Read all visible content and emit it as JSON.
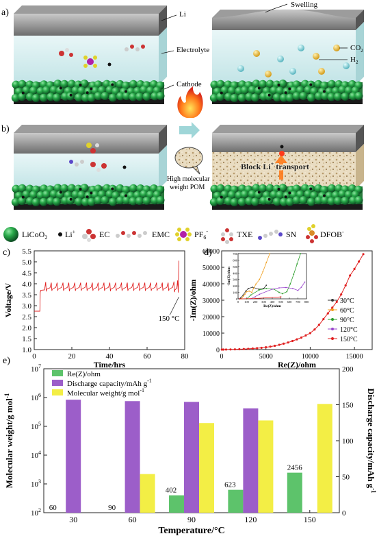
{
  "schematic": {
    "panel_a": "a)",
    "panel_b": "b)",
    "label_li": "Li",
    "label_electrolyte": "Electrolyte",
    "label_cathode": "Cathode",
    "label_swelling": "Swelling",
    "label_co2": "CO",
    "label_co2_sub": "2",
    "label_h2": "H",
    "label_h2_sub": "2",
    "label_block": "Block Li",
    "label_block_sup": "+",
    "label_block_tail": " transport",
    "label_pom_line1": "High molecular",
    "label_pom_line2": "weight POM"
  },
  "legend_row": {
    "licoo2": "LiCoO",
    "licoo2_sub": "2",
    "li": "Li",
    "li_sup": "+",
    "ec": "EC",
    "emc": "EMC",
    "pf6": "PF",
    "pf6_sub": "6",
    "pf6_sup": "-",
    "txe": "TXE",
    "sn": "SN",
    "dfob": "DFOB",
    "dfob_sup": "-"
  },
  "chart_data": [
    {
      "id": "c",
      "panel": "c)",
      "type": "line",
      "xlabel": "Time/hrs",
      "ylabel": "Voltage/V",
      "xlim": [
        0,
        80
      ],
      "ylim": [
        1.0,
        5.5
      ],
      "xticks": [
        0,
        20,
        40,
        60,
        80
      ],
      "yticks": [
        1.0,
        1.5,
        2.0,
        2.5,
        3.0,
        3.5,
        4.0,
        4.5,
        5.0,
        5.5
      ],
      "annotation": "150 °C",
      "series": [
        {
          "color": "#e02020",
          "points": [
            [
              0,
              2.75
            ],
            [
              3,
              2.75
            ],
            [
              3.2,
              3.6
            ],
            [
              3.5,
              3.7
            ],
            [
              5.5,
              3.72
            ],
            [
              6.1,
              4.08
            ],
            [
              6.25,
              3.86
            ],
            [
              6.4,
              3.65
            ],
            [
              6.6,
              3.75
            ],
            [
              8.4,
              3.82
            ],
            [
              9.1,
              4.05
            ],
            [
              9.25,
              3.84
            ],
            [
              9.4,
              3.68
            ],
            [
              9.6,
              3.75
            ],
            [
              11.5,
              3.84
            ],
            [
              12.2,
              4.05
            ],
            [
              12.35,
              3.84
            ],
            [
              12.5,
              3.68
            ],
            [
              12.7,
              3.75
            ],
            [
              14.6,
              3.84
            ],
            [
              15.3,
              4.05
            ],
            [
              15.45,
              3.84
            ],
            [
              15.6,
              3.68
            ],
            [
              15.8,
              3.75
            ],
            [
              17.7,
              3.84
            ],
            [
              18.4,
              4.05
            ],
            [
              18.55,
              3.84
            ],
            [
              18.7,
              3.66
            ],
            [
              18.9,
              3.75
            ],
            [
              20.9,
              3.84
            ],
            [
              21.6,
              4.05
            ],
            [
              21.75,
              3.84
            ],
            [
              21.9,
              3.68
            ],
            [
              22.1,
              3.75
            ],
            [
              24,
              3.84
            ],
            [
              24.7,
              4.05
            ],
            [
              24.85,
              3.84
            ],
            [
              25,
              3.68
            ],
            [
              25.2,
              3.75
            ],
            [
              27.1,
              3.84
            ],
            [
              27.8,
              4.05
            ],
            [
              27.95,
              3.84
            ],
            [
              28.1,
              3.68
            ],
            [
              28.3,
              3.75
            ],
            [
              30.2,
              3.84
            ],
            [
              30.9,
              4.05
            ],
            [
              31.05,
              3.84
            ],
            [
              31.2,
              3.68
            ],
            [
              31.4,
              3.75
            ],
            [
              33.3,
              3.84
            ],
            [
              34,
              4.05
            ],
            [
              34.15,
              3.84
            ],
            [
              34.3,
              3.68
            ],
            [
              34.5,
              3.75
            ],
            [
              36.4,
              3.84
            ],
            [
              37.1,
              4.05
            ],
            [
              37.25,
              3.84
            ],
            [
              37.4,
              3.68
            ],
            [
              37.6,
              3.75
            ],
            [
              39.5,
              3.84
            ],
            [
              40.2,
              4.05
            ],
            [
              40.35,
              3.84
            ],
            [
              40.5,
              3.66
            ],
            [
              40.7,
              3.75
            ],
            [
              42.6,
              3.84
            ],
            [
              43.3,
              4.05
            ],
            [
              43.45,
              3.84
            ],
            [
              43.6,
              3.68
            ],
            [
              43.8,
              3.75
            ],
            [
              45.7,
              3.84
            ],
            [
              46.4,
              4.05
            ],
            [
              46.55,
              3.84
            ],
            [
              46.7,
              3.68
            ],
            [
              46.9,
              3.75
            ],
            [
              48.8,
              3.84
            ],
            [
              49.5,
              4.05
            ],
            [
              49.65,
              3.84
            ],
            [
              49.8,
              3.68
            ],
            [
              50,
              3.75
            ],
            [
              51.9,
              3.84
            ],
            [
              52.6,
              4.05
            ],
            [
              52.75,
              3.84
            ],
            [
              52.9,
              3.68
            ],
            [
              53.1,
              3.75
            ],
            [
              55,
              3.84
            ],
            [
              55.7,
              4.05
            ],
            [
              55.85,
              3.84
            ],
            [
              56,
              3.68
            ],
            [
              56.2,
              3.75
            ],
            [
              58.1,
              3.84
            ],
            [
              58.8,
              4.05
            ],
            [
              58.95,
              3.84
            ],
            [
              59.1,
              3.68
            ],
            [
              59.3,
              3.75
            ],
            [
              61.2,
              3.84
            ],
            [
              61.9,
              4.05
            ],
            [
              62.05,
              3.84
            ],
            [
              62.2,
              3.68
            ],
            [
              62.4,
              3.75
            ],
            [
              64.3,
              3.84
            ],
            [
              65,
              4.05
            ],
            [
              65.15,
              3.84
            ],
            [
              65.3,
              3.68
            ],
            [
              65.5,
              3.75
            ],
            [
              67.4,
              3.84
            ],
            [
              68.1,
              4.05
            ],
            [
              68.25,
              3.84
            ],
            [
              68.4,
              3.68
            ],
            [
              68.6,
              3.75
            ],
            [
              70.5,
              3.84
            ],
            [
              71.2,
              4.05
            ],
            [
              71.35,
              3.84
            ],
            [
              71.5,
              3.68
            ],
            [
              71.7,
              3.75
            ],
            [
              73.6,
              3.84
            ],
            [
              74.3,
              4.1
            ],
            [
              74.45,
              3.85
            ],
            [
              74.6,
              3.62
            ],
            [
              74.8,
              3.72
            ],
            [
              75.8,
              3.8
            ],
            [
              76.2,
              4.15
            ],
            [
              76.4,
              3.85
            ],
            [
              76.6,
              3.6
            ],
            [
              76.9,
              5.05
            ]
          ]
        }
      ]
    },
    {
      "id": "d",
      "panel": "d)",
      "type": "scatter",
      "xlabel": "Re(Z)/ohm",
      "ylabel": "-Im(Z)/ohm",
      "xlim": [
        0,
        17000
      ],
      "ylim": [
        0,
        60000
      ],
      "xticks": [
        0,
        5000,
        10000,
        15000
      ],
      "yticks": [
        0,
        10000,
        20000,
        30000,
        40000,
        50000,
        60000
      ],
      "series": [
        {
          "name": "30°C",
          "color": "#333333",
          "points": [
            [
              20,
              0
            ],
            [
              30,
              15
            ],
            [
              60,
              60
            ],
            [
              90,
              120
            ],
            [
              120,
              160
            ],
            [
              170,
              180
            ],
            [
              240,
              150
            ],
            [
              300,
              160
            ],
            [
              330,
              210
            ]
          ]
        },
        {
          "name": "60°C",
          "color": "#f0a020",
          "points": [
            [
              40,
              0
            ],
            [
              60,
              40
            ],
            [
              80,
              70
            ],
            [
              100,
              110
            ],
            [
              130,
              120
            ],
            [
              160,
              100
            ],
            [
              180,
              160
            ],
            [
              210,
              230
            ],
            [
              250,
              300
            ],
            [
              290,
              420
            ],
            [
              330,
              560
            ],
            [
              370,
              700
            ]
          ]
        },
        {
          "name": "90°C",
          "color": "#2a9d2a",
          "points": [
            [
              100,
              0
            ],
            [
              150,
              60
            ],
            [
              250,
              140
            ],
            [
              330,
              160
            ],
            [
              420,
              150
            ],
            [
              480,
              100
            ],
            [
              520,
              80
            ],
            [
              570,
              110
            ],
            [
              610,
              230
            ],
            [
              650,
              380
            ],
            [
              690,
              540
            ],
            [
              730,
              700
            ]
          ]
        },
        {
          "name": "120°C",
          "color": "#9944cc",
          "points": [
            [
              150,
              0
            ],
            [
              250,
              70
            ],
            [
              400,
              150
            ],
            [
              480,
              170
            ],
            [
              560,
              175
            ],
            [
              640,
              160
            ],
            [
              700,
              130
            ],
            [
              740,
              180
            ],
            [
              780,
              260
            ],
            [
              830,
              360
            ],
            [
              880,
              480
            ],
            [
              930,
              620
            ],
            [
              980,
              700
            ]
          ]
        },
        {
          "name": "150°C",
          "color": "#e02020",
          "points": [
            [
              20,
              0
            ],
            [
              200,
              5
            ],
            [
              500,
              30
            ],
            [
              1000,
              80
            ],
            [
              1500,
              140
            ],
            [
              2000,
              220
            ],
            [
              2500,
              330
            ],
            [
              3000,
              450
            ],
            [
              3500,
              620
            ],
            [
              4000,
              850
            ],
            [
              4500,
              1050
            ],
            [
              5000,
              1400
            ],
            [
              5500,
              1800
            ],
            [
              6000,
              2300
            ],
            [
              6500,
              2900
            ],
            [
              7000,
              3600
            ],
            [
              7500,
              4300
            ],
            [
              8000,
              5200
            ],
            [
              8500,
              6200
            ],
            [
              9000,
              7300
            ],
            [
              9500,
              8600
            ],
            [
              10000,
              10000
            ],
            [
              10500,
              12200
            ],
            [
              11000,
              15000
            ],
            [
              11500,
              18500
            ],
            [
              12000,
              22000
            ],
            [
              12500,
              25500
            ],
            [
              13000,
              29000
            ],
            [
              13500,
              33500
            ],
            [
              14000,
              39000
            ],
            [
              14500,
              45000
            ],
            [
              15000,
              49000
            ],
            [
              15500,
              53500
            ],
            [
              16000,
              58000
            ]
          ]
        }
      ],
      "inset": {
        "xlabel": "Re(Z)/ohm",
        "ylabel": "-Im(Z)/ohm",
        "xlim": [
          0,
          800
        ],
        "ylim": [
          0,
          700
        ],
        "xticks": [
          0,
          100,
          200,
          300,
          400,
          500,
          600,
          700,
          800
        ],
        "yticks": [
          0,
          100,
          200,
          300,
          400,
          500,
          600,
          700
        ]
      }
    },
    {
      "id": "e",
      "panel": "e)",
      "type": "bar",
      "xlabel": "Temperature/°C",
      "ylabel_left": "Molecular weight/g mol",
      "ylabel_left_sup": "-1",
      "ylabel_right": "Discharge capacity/mAh g",
      "ylabel_right_sup": "-1",
      "categories": [
        "30",
        "60",
        "90",
        "120",
        "150"
      ],
      "left_log_range": [
        100,
        10000000
      ],
      "right_range": [
        0,
        200
      ],
      "right_ticks": [
        0,
        50,
        100,
        150,
        200
      ],
      "series": [
        {
          "name": "Re(Z)/ohm",
          "color": "#5dc36b",
          "axis": "left",
          "values": [
            60,
            90,
            402,
            623,
            2456
          ],
          "labels": [
            "60",
            "90",
            "402",
            "623",
            "2456"
          ]
        },
        {
          "name": "Discharge capacity/mAh g",
          "name_sup": "-1",
          "color": "#9c5ec9",
          "axis": "right",
          "values": [
            157,
            155,
            154,
            145,
            0
          ]
        },
        {
          "name": "Molecular weight/g mol",
          "name_sup": "-1",
          "color": "#f3ee45",
          "axis": "left",
          "values": [
            100,
            2200,
            130000,
            160000,
            600000
          ]
        }
      ]
    }
  ]
}
